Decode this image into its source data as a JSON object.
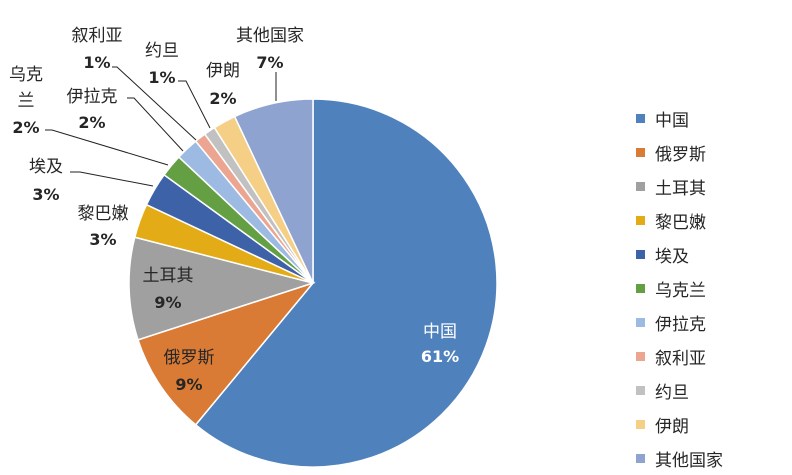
{
  "chart_data": {
    "type": "pie",
    "title": "",
    "start_angle_deg": 0,
    "direction": "clockwise",
    "legend_position": "right",
    "categories": [
      "中国",
      "俄罗斯",
      "土耳其",
      "黎巴嫩",
      "埃及",
      "乌克兰",
      "伊拉克",
      "叙利亚",
      "约旦",
      "伊朗",
      "其他国家"
    ],
    "values": [
      61,
      9,
      9,
      3,
      3,
      2,
      2,
      1,
      1,
      2,
      7
    ],
    "value_labels": [
      "61%",
      "9%",
      "9%",
      "3%",
      "3%",
      "2%",
      "2%",
      "1%",
      "1%",
      "2%",
      "7%"
    ],
    "colors": [
      "#4f81bd",
      "#d97a35",
      "#a0a0a0",
      "#e3ac17",
      "#3e62a8",
      "#64a043",
      "#9dbbe2",
      "#eba590",
      "#c1c1c1",
      "#f6cf87",
      "#8fa3d1"
    ]
  },
  "labels": [
    {
      "name": "中国",
      "pct": "61%"
    },
    {
      "name": "俄罗斯",
      "pct": "9%"
    },
    {
      "name": "土耳其",
      "pct": "9%"
    },
    {
      "name": "黎巴嫩",
      "pct": "3%"
    },
    {
      "name": "埃及",
      "pct": "3%"
    },
    {
      "name": "乌克兰",
      "pct": "2%"
    },
    {
      "name": "伊拉克",
      "pct": "2%"
    },
    {
      "name": "叙利亚",
      "pct": "1%"
    },
    {
      "name": "约旦",
      "pct": "1%"
    },
    {
      "name": "伊朗",
      "pct": "2%"
    },
    {
      "name": "其他国家",
      "pct": "7%"
    }
  ],
  "legend": {
    "items": [
      "中国",
      "俄罗斯",
      "土耳其",
      "黎巴嫩",
      "埃及",
      "乌克兰",
      "伊拉克",
      "叙利亚",
      "约旦",
      "伊朗",
      "其他国家"
    ]
  }
}
